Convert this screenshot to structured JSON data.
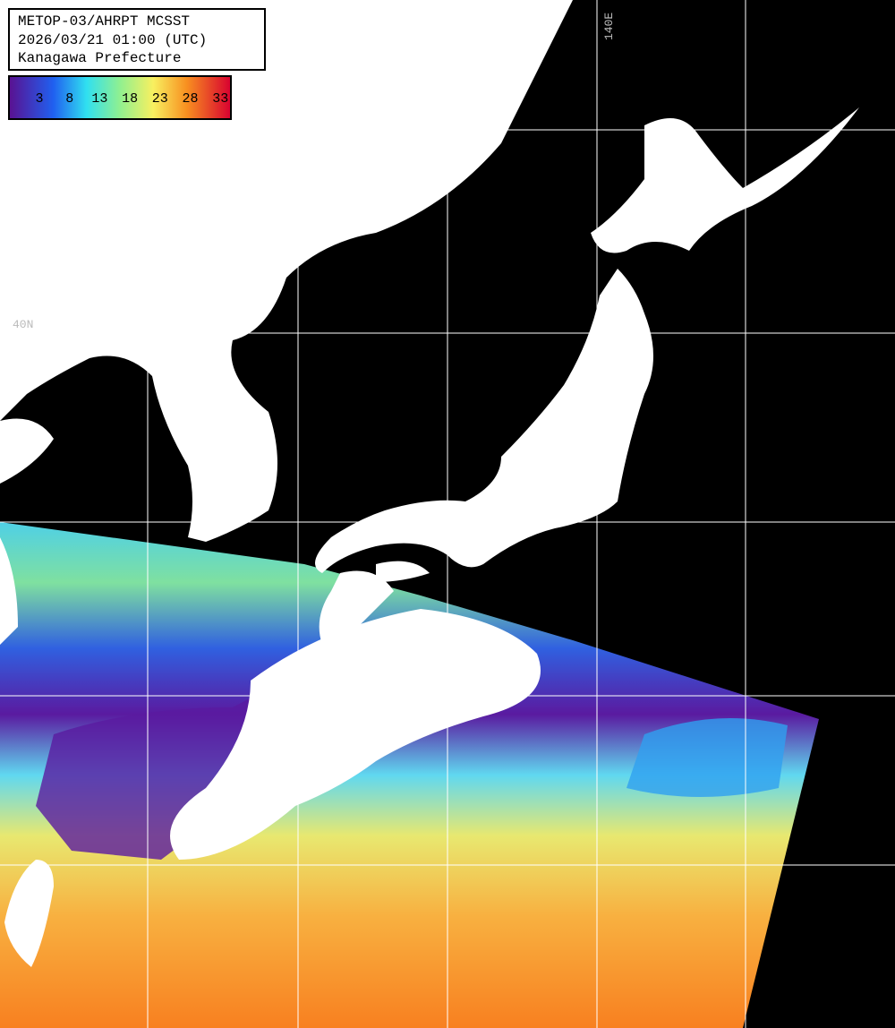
{
  "header": {
    "lines": [
      "METOP-03/AHRPT MCSST",
      "2026/03/21 01:00 (UTC)",
      "Kanagawa Prefecture"
    ]
  },
  "colorbar": {
    "labels": [
      3,
      8,
      13,
      18,
      23,
      28,
      33
    ]
  },
  "grid_labels": {
    "lat": "40N",
    "lon": "140E"
  }
}
